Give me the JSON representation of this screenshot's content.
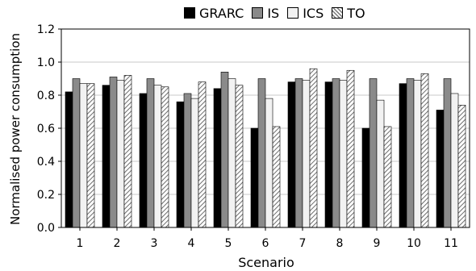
{
  "chart_data": {
    "type": "bar",
    "xlabel": "Scenario",
    "ylabel": "Normalised power consumption",
    "ylim": [
      0,
      1.2
    ],
    "yticks": [
      "0.0",
      "0.2",
      "0.4",
      "0.6",
      "0.8",
      "1.0",
      "1.2"
    ],
    "categories": [
      "1",
      "2",
      "3",
      "4",
      "5",
      "6",
      "7",
      "8",
      "9",
      "10",
      "11"
    ],
    "grid": true,
    "legend_position": "top",
    "series": [
      {
        "name": "GRARC",
        "color": "#000000",
        "values": [
          0.82,
          0.86,
          0.81,
          0.76,
          0.84,
          0.6,
          0.88,
          0.88,
          0.6,
          0.87,
          0.71
        ]
      },
      {
        "name": "IS",
        "color": "#8a8a8a",
        "values": [
          0.9,
          0.91,
          0.9,
          0.81,
          0.94,
          0.9,
          0.9,
          0.9,
          0.9,
          0.9,
          0.9
        ]
      },
      {
        "name": "ICS",
        "color": "#f2f2f2",
        "values": [
          0.87,
          0.89,
          0.86,
          0.78,
          0.9,
          0.78,
          0.89,
          0.89,
          0.77,
          0.89,
          0.81
        ]
      },
      {
        "name": "TO",
        "color": "hatched",
        "values": [
          0.87,
          0.92,
          0.85,
          0.88,
          0.86,
          0.61,
          0.96,
          0.95,
          0.61,
          0.93,
          0.74
        ]
      }
    ]
  }
}
